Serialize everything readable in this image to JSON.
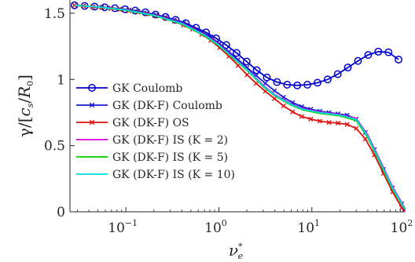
{
  "chart_data": {
    "type": "line",
    "xscale": "log",
    "xlim": [
      0.025,
      100
    ],
    "ylim": [
      0,
      1.6
    ],
    "xlabel": "ν*e",
    "ylabel": "γ/[cs/R0]",
    "x_ticks": [
      {
        "value": 0.1,
        "label": "10",
        "exp": "−1"
      },
      {
        "value": 1,
        "label": "10",
        "exp": "0"
      },
      {
        "value": 10,
        "label": "10",
        "exp": "1"
      },
      {
        "value": 100,
        "label": "10",
        "exp": "2"
      }
    ],
    "y_ticks": [
      {
        "value": 0,
        "label": "0"
      },
      {
        "value": 0.5,
        "label": "0.5"
      },
      {
        "value": 1,
        "label": "1"
      },
      {
        "value": 1.5,
        "label": "1.5"
      }
    ],
    "grid": false,
    "legend_position": "bottom-left",
    "series": [
      {
        "name": "GK Coulomb",
        "color": "#0000cc",
        "marker": "circle",
        "x": [
          0.028,
          0.036,
          0.046,
          0.059,
          0.076,
          0.098,
          0.126,
          0.162,
          0.208,
          0.267,
          0.343,
          0.441,
          0.567,
          0.728,
          0.936,
          1.2,
          1.55,
          1.99,
          2.55,
          3.28,
          4.22,
          5.42,
          6.97,
          8.96,
          11.5,
          14.8,
          19.0,
          24.4,
          31.4,
          40.4,
          51.9,
          66.7,
          85.7
        ],
        "y": [
          1.56,
          1.555,
          1.55,
          1.545,
          1.538,
          1.53,
          1.52,
          1.507,
          1.49,
          1.472,
          1.45,
          1.425,
          1.39,
          1.355,
          1.31,
          1.26,
          1.2,
          1.135,
          1.07,
          1.015,
          0.98,
          0.96,
          0.955,
          0.96,
          0.975,
          1.0,
          1.04,
          1.09,
          1.14,
          1.185,
          1.21,
          1.205,
          1.15
        ]
      },
      {
        "name": "GK (DK-F) Coulomb",
        "color": "#1a1ad9",
        "marker": "x",
        "x": [
          0.028,
          0.035,
          0.044,
          0.055,
          0.069,
          0.086,
          0.108,
          0.135,
          0.169,
          0.212,
          0.265,
          0.332,
          0.416,
          0.521,
          0.653,
          0.818,
          1.02,
          1.28,
          1.61,
          2.01,
          2.52,
          3.16,
          3.96,
          4.96,
          6.21,
          7.78,
          9.74,
          12.2,
          15.3,
          19.1,
          24.0,
          30.0,
          37.6,
          47.1,
          59.0,
          73.9,
          92.6,
          100
        ],
        "y": [
          1.56,
          1.555,
          1.55,
          1.545,
          1.54,
          1.533,
          1.525,
          1.515,
          1.502,
          1.488,
          1.47,
          1.45,
          1.425,
          1.395,
          1.36,
          1.32,
          1.27,
          1.21,
          1.15,
          1.09,
          1.03,
          0.97,
          0.915,
          0.865,
          0.825,
          0.795,
          0.775,
          0.76,
          0.75,
          0.74,
          0.73,
          0.7,
          0.6,
          0.47,
          0.32,
          0.18,
          0.06,
          0.02
        ]
      },
      {
        "name": "GK (DK-F) OS",
        "color": "#e01010",
        "marker": "x",
        "x": [
          0.028,
          0.035,
          0.044,
          0.055,
          0.069,
          0.086,
          0.108,
          0.135,
          0.169,
          0.212,
          0.265,
          0.332,
          0.416,
          0.521,
          0.653,
          0.818,
          1.02,
          1.28,
          1.61,
          2.01,
          2.52,
          3.16,
          3.96,
          4.96,
          6.21,
          7.78,
          9.74,
          12.2,
          15.3,
          19.1,
          24.0,
          30.0,
          37.6,
          47.1,
          59.0,
          73.9,
          92.6,
          100
        ],
        "y": [
          1.56,
          1.554,
          1.548,
          1.542,
          1.535,
          1.527,
          1.518,
          1.507,
          1.494,
          1.478,
          1.46,
          1.438,
          1.41,
          1.378,
          1.34,
          1.295,
          1.24,
          1.175,
          1.105,
          1.035,
          0.97,
          0.91,
          0.855,
          0.8,
          0.755,
          0.72,
          0.7,
          0.685,
          0.675,
          0.67,
          0.66,
          0.63,
          0.55,
          0.43,
          0.29,
          0.15,
          0.03,
          0.0
        ]
      },
      {
        "name": "GK (DK-F) IS (K = 2)",
        "color": "#dd00dd",
        "marker": "none",
        "x": [
          0.028,
          0.05,
          0.1,
          0.2,
          0.4,
          0.7,
          1.0,
          1.5,
          2.0,
          3.0,
          4.0,
          6.0,
          8.0,
          12.0,
          20.0,
          30.0,
          40.0,
          55.0,
          75.0,
          100
        ],
        "y": [
          1.56,
          1.548,
          1.525,
          1.487,
          1.425,
          1.34,
          1.265,
          1.155,
          1.08,
          0.955,
          0.885,
          0.815,
          0.78,
          0.755,
          0.735,
          0.705,
          0.58,
          0.38,
          0.18,
          0.03
        ]
      },
      {
        "name": "GK (DK-F) IS (K = 5)",
        "color": "#00cc00",
        "marker": "none",
        "x": [
          0.028,
          0.05,
          0.1,
          0.2,
          0.4,
          0.7,
          1.0,
          1.5,
          2.0,
          3.0,
          4.0,
          6.0,
          8.0,
          12.0,
          20.0,
          30.0,
          40.0,
          55.0,
          75.0,
          100
        ],
        "y": [
          1.56,
          1.547,
          1.522,
          1.482,
          1.418,
          1.33,
          1.255,
          1.145,
          1.07,
          0.945,
          0.875,
          0.805,
          0.77,
          0.745,
          0.725,
          0.69,
          0.56,
          0.36,
          0.16,
          0.02
        ]
      },
      {
        "name": "GK (DK-F) IS (K = 10)",
        "color": "#00dddd",
        "marker": "none",
        "x": [
          0.028,
          0.05,
          0.1,
          0.2,
          0.4,
          0.7,
          1.0,
          1.5,
          2.0,
          3.0,
          4.0,
          6.0,
          8.0,
          12.0,
          20.0,
          30.0,
          40.0,
          55.0,
          75.0,
          100
        ],
        "y": [
          1.56,
          1.548,
          1.524,
          1.485,
          1.422,
          1.336,
          1.26,
          1.15,
          1.075,
          0.95,
          0.88,
          0.81,
          0.775,
          0.75,
          0.73,
          0.698,
          0.57,
          0.37,
          0.17,
          0.025
        ]
      }
    ]
  }
}
